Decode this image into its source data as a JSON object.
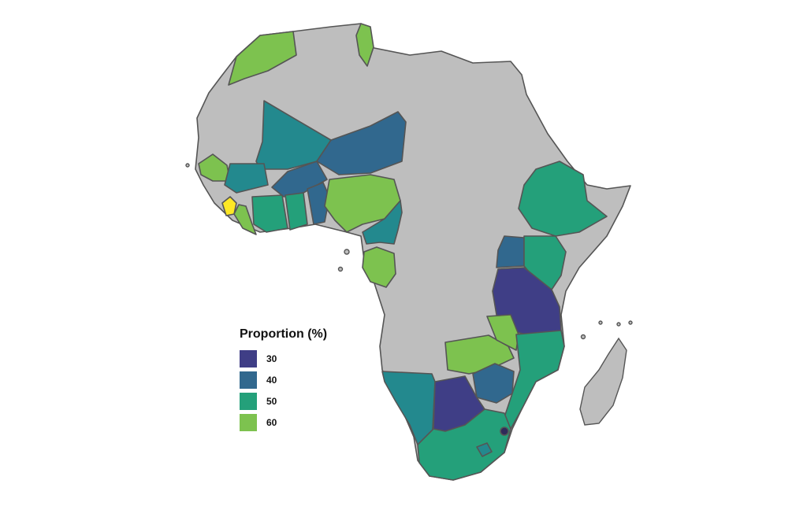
{
  "legend": {
    "title": "Proportion (%)",
    "items": [
      {
        "label": "30",
        "color": "#3f3e86"
      },
      {
        "label": "40",
        "color": "#31688e"
      },
      {
        "label": "50",
        "color": "#24a07a"
      },
      {
        "label": "60",
        "color": "#7dc24f"
      }
    ]
  },
  "colors": {
    "no_data": "#bebebe",
    "highest": "#fde725",
    "dark": "#2f2a5a"
  }
}
